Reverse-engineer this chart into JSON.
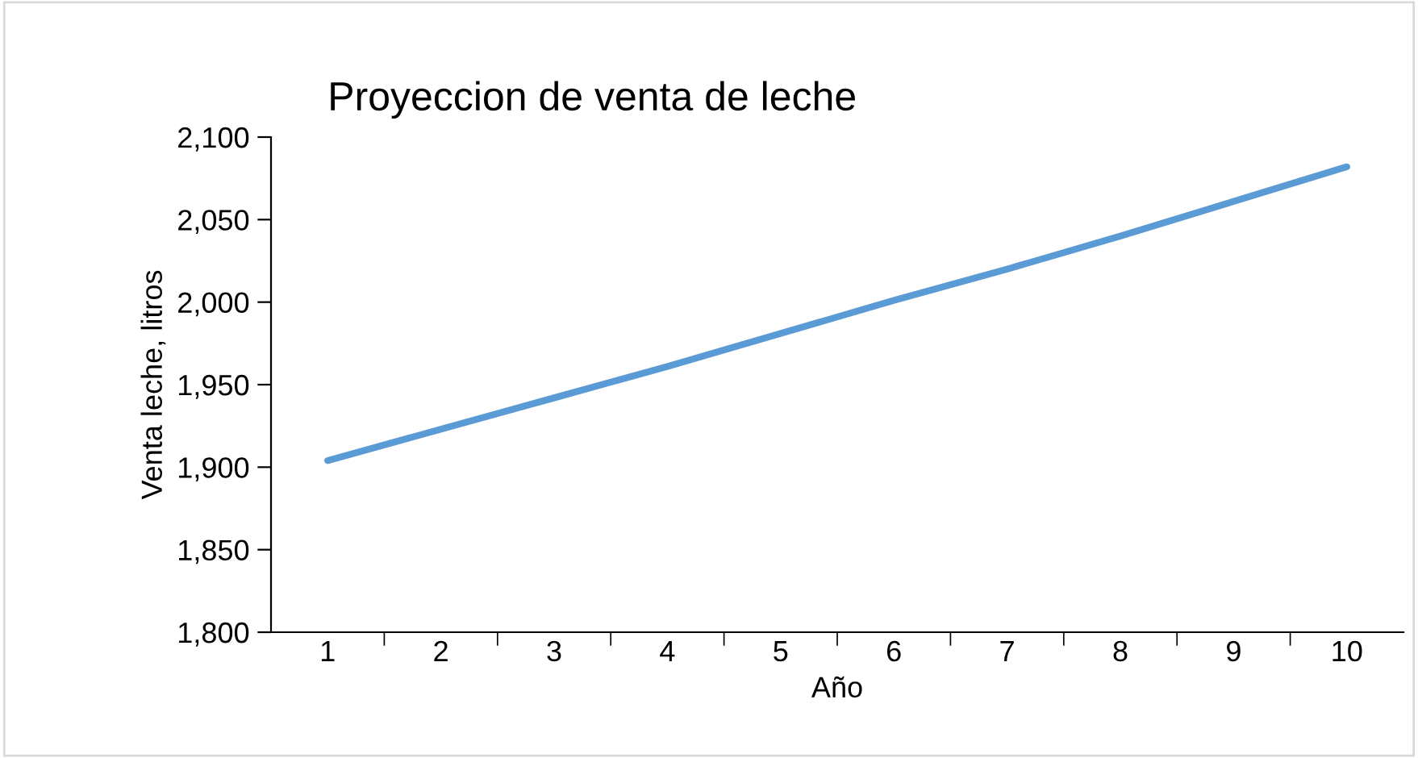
{
  "chart_data": {
    "type": "line",
    "title": "Proyeccion de venta de leche",
    "xlabel": "Año",
    "ylabel": "Venta leche, litros",
    "categories": [
      "1",
      "2",
      "3",
      "4",
      "5",
      "6",
      "7",
      "8",
      "9",
      "10"
    ],
    "series": [
      {
        "color": "#5b9bd5",
        "values": [
          1904,
          1923,
          1942,
          1961,
          1981,
          2001,
          2020,
          2040,
          2061,
          2082
        ]
      }
    ],
    "ylim": [
      1800,
      2100
    ],
    "yticks": [
      {
        "value": 1800,
        "label": "1,800"
      },
      {
        "value": 1850,
        "label": "1,850"
      },
      {
        "value": 1900,
        "label": "1,900"
      },
      {
        "value": 1950,
        "label": "1,950"
      },
      {
        "value": 2000,
        "label": "2,000"
      },
      {
        "value": 2050,
        "label": "2,050"
      },
      {
        "value": 2100,
        "label": "2,100"
      }
    ],
    "marker": "none",
    "line_style": "solid"
  }
}
